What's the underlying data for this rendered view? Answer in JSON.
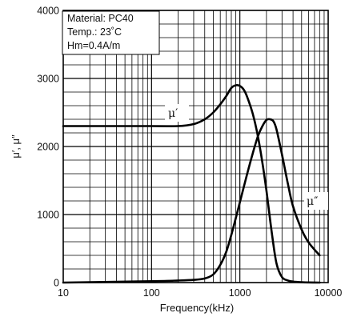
{
  "chart_data": {
    "type": "line",
    "title": "",
    "xlabel": "Frequency(kHz)",
    "ylabel": "μ′, μ″",
    "xscale": "log",
    "xlim": [
      10,
      10000
    ],
    "ylim": [
      0,
      4000
    ],
    "x_ticks": [
      10,
      100,
      1000,
      10000
    ],
    "x_tick_labels": [
      "10",
      "100",
      "1000",
      "10000"
    ],
    "y_ticks": [
      0,
      1000,
      2000,
      3000,
      4000
    ],
    "y_tick_labels": [
      "0",
      "1000",
      "2000",
      "3000",
      "4000"
    ],
    "grid": true,
    "legend_position": "top-left",
    "annotations": [
      "Material: PC40",
      "Temp.: 23˚C",
      "Hm=0.4A/m"
    ],
    "series": [
      {
        "name": "μ′",
        "x": [
          10,
          100,
          200,
          300,
          400,
          500,
          600,
          700,
          800,
          900,
          1000,
          1100,
          1200,
          1400,
          1600,
          1800,
          2000,
          2300,
          2600,
          3000,
          3500,
          4000,
          5000,
          6000,
          8000
        ],
        "y": [
          2300,
          2300,
          2300,
          2330,
          2400,
          2500,
          2620,
          2740,
          2860,
          2900,
          2890,
          2840,
          2740,
          2480,
          2150,
          1760,
          1350,
          730,
          280,
          80,
          30,
          15,
          5,
          2,
          0
        ]
      },
      {
        "name": "μ″",
        "x": [
          10,
          100,
          200,
          300,
          400,
          500,
          600,
          700,
          800,
          900,
          1000,
          1200,
          1400,
          1600,
          1800,
          2000,
          2200,
          2400,
          2600,
          3000,
          3500,
          4000,
          5000,
          6000,
          8000
        ],
        "y": [
          0,
          20,
          30,
          40,
          60,
          120,
          260,
          450,
          700,
          950,
          1180,
          1580,
          1900,
          2150,
          2300,
          2390,
          2400,
          2370,
          2250,
          1880,
          1450,
          1120,
          780,
          590,
          400
        ]
      }
    ]
  }
}
